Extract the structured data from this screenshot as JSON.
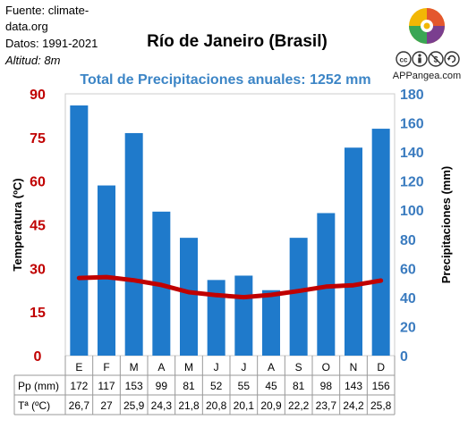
{
  "source": {
    "line1": "Fuente: climate-",
    "line2": "data.org",
    "line3": "Datos: 1991-2021",
    "line4": "Altitud: 8m"
  },
  "brand": {
    "name": "APPangea.com",
    "icons": [
      "puzzle-logo-icon",
      "cc-icon",
      "by-icon",
      "nc-icon",
      "sa-icon"
    ]
  },
  "chart_data": {
    "type": "bar",
    "title": "Río de Janeiro (Brasil)",
    "subtitle": "Total de Precipitaciones anuales: 1252 mm",
    "categories": [
      "E",
      "F",
      "M",
      "A",
      "M",
      "J",
      "J",
      "A",
      "S",
      "O",
      "N",
      "D"
    ],
    "series": [
      {
        "name": "Pp (mm)",
        "type": "bar",
        "axis": "right",
        "color": "#1f7acb",
        "values": [
          172,
          117,
          153,
          99,
          81,
          52,
          55,
          45,
          81,
          98,
          143,
          156
        ]
      },
      {
        "name": "Tª (ºC)",
        "type": "line",
        "axis": "left",
        "color": "#c00000",
        "values": [
          26.7,
          27,
          25.9,
          24.3,
          21.8,
          20.8,
          20.1,
          20.9,
          22.2,
          23.7,
          24.2,
          25.8
        ]
      }
    ],
    "table": {
      "rows": [
        {
          "label": "Pp (mm)",
          "values": [
            "172",
            "117",
            "153",
            "99",
            "81",
            "52",
            "55",
            "45",
            "81",
            "98",
            "143",
            "156"
          ]
        },
        {
          "label": "Tª (ºC)",
          "values": [
            "26,7",
            "27",
            "25,9",
            "24,3",
            "21,8",
            "20,8",
            "20,1",
            "20,9",
            "22,2",
            "23,7",
            "24,2",
            "25,8"
          ]
        }
      ]
    },
    "ylabel_left": "Temperatura (ºC)",
    "ylabel_right": "Precipitaciones (mm)",
    "ylim_left": [
      0,
      90
    ],
    "yticks_left": [
      0,
      15,
      30,
      45,
      60,
      75,
      90
    ],
    "ylim_right": [
      0,
      180
    ],
    "yticks_right": [
      0,
      20,
      40,
      60,
      80,
      100,
      120,
      140,
      160,
      180
    ],
    "left_axis_color": "#c00000",
    "right_axis_color": "#3a7bbf",
    "grid": false,
    "legend": "none"
  }
}
